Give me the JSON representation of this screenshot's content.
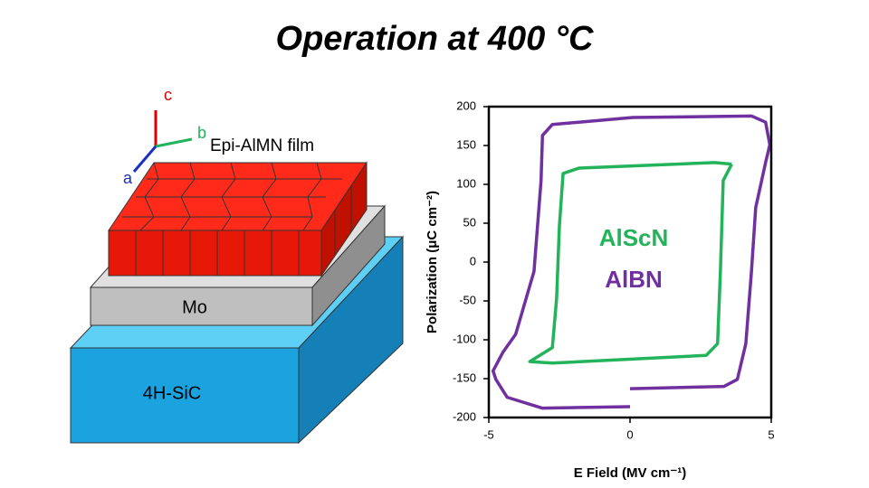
{
  "title": "Operation at 400 °C",
  "diagram": {
    "axes": {
      "c": "c",
      "b": "b",
      "a": "a"
    },
    "film": "Epi-AlMN film",
    "electrode": "Mo",
    "substrate": "4H-SiC"
  },
  "chart_data": {
    "type": "line",
    "xlabel": "E Field (MV cm⁻¹)",
    "ylabel": "Polarization (μC cm⁻²)",
    "xlim": [
      -5,
      5
    ],
    "ylim": [
      -200,
      200
    ],
    "xticks": [
      -5,
      0,
      5
    ],
    "yticks": [
      -200,
      -150,
      -100,
      -50,
      0,
      50,
      100,
      150,
      200
    ],
    "series": [
      {
        "name": "AlScN",
        "color": "#22b35b",
        "x": [
          3.6,
          3.0,
          -1.8,
          -2.37,
          -2.5,
          -2.6,
          -2.75,
          -3.55,
          -2.75,
          2.7,
          3.1,
          3.2,
          3.3,
          3.6
        ],
        "y": [
          126,
          128,
          121,
          114,
          47,
          -47,
          -110,
          -128,
          -130,
          -120,
          -105,
          -12,
          105,
          126
        ]
      },
      {
        "name": "AlBN",
        "color": "#7030a0",
        "x": [
          0,
          3.33,
          3.8,
          4.1,
          4.3,
          4.45,
          4.8,
          4.95,
          4.8,
          4.3,
          0.1,
          -2.75,
          -3.1,
          -3.15,
          -3.4,
          -4.05,
          -4.5,
          -4.85,
          -4.75,
          -4.35,
          -3.1,
          0
        ],
        "y": [
          -163,
          -160,
          -151,
          -105,
          -12,
          70,
          128,
          151,
          180,
          188,
          186,
          177,
          163,
          105,
          -12,
          -93,
          -116,
          -140,
          -151,
          -174,
          -188,
          -186
        ]
      }
    ]
  }
}
